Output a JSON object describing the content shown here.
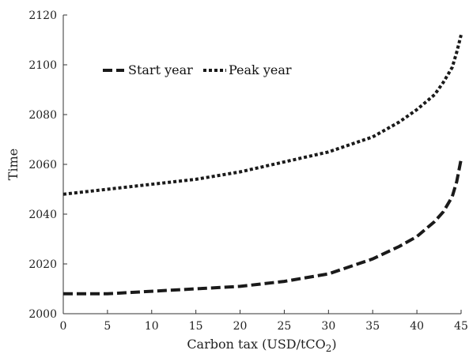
{
  "chart_data": {
    "type": "line",
    "title": "",
    "xlabel": "Carbon tax (USD/tCO",
    "xlabel_subscript": "2",
    "xlabel_suffix": ")",
    "ylabel": "Time",
    "xlim": [
      0,
      45
    ],
    "ylim": [
      2000,
      2120
    ],
    "xticks": [
      0,
      5,
      10,
      15,
      20,
      25,
      30,
      35,
      40,
      45
    ],
    "yticks": [
      2000,
      2020,
      2040,
      2060,
      2080,
      2100,
      2120
    ],
    "grid": false,
    "legend_position": "top-left",
    "series": [
      {
        "name": "Start year",
        "style": "dashed",
        "color": "#1a1a1a",
        "x": [
          0,
          5,
          10,
          15,
          20,
          25,
          30,
          35,
          38,
          40,
          42,
          43,
          44,
          44.5,
          45
        ],
        "y": [
          2008,
          2008,
          2009,
          2010,
          2011,
          2013,
          2016,
          2022,
          2027,
          2031,
          2037,
          2041,
          2047,
          2053,
          2062
        ]
      },
      {
        "name": "Peak year",
        "style": "dotted",
        "color": "#1a1a1a",
        "x": [
          0,
          5,
          10,
          15,
          20,
          25,
          30,
          35,
          38,
          40,
          42,
          43,
          44,
          44.5,
          45
        ],
        "y": [
          2048,
          2050,
          2052,
          2054,
          2057,
          2061,
          2065,
          2071,
          2077,
          2082,
          2088,
          2093,
          2099,
          2105,
          2112
        ]
      }
    ]
  }
}
